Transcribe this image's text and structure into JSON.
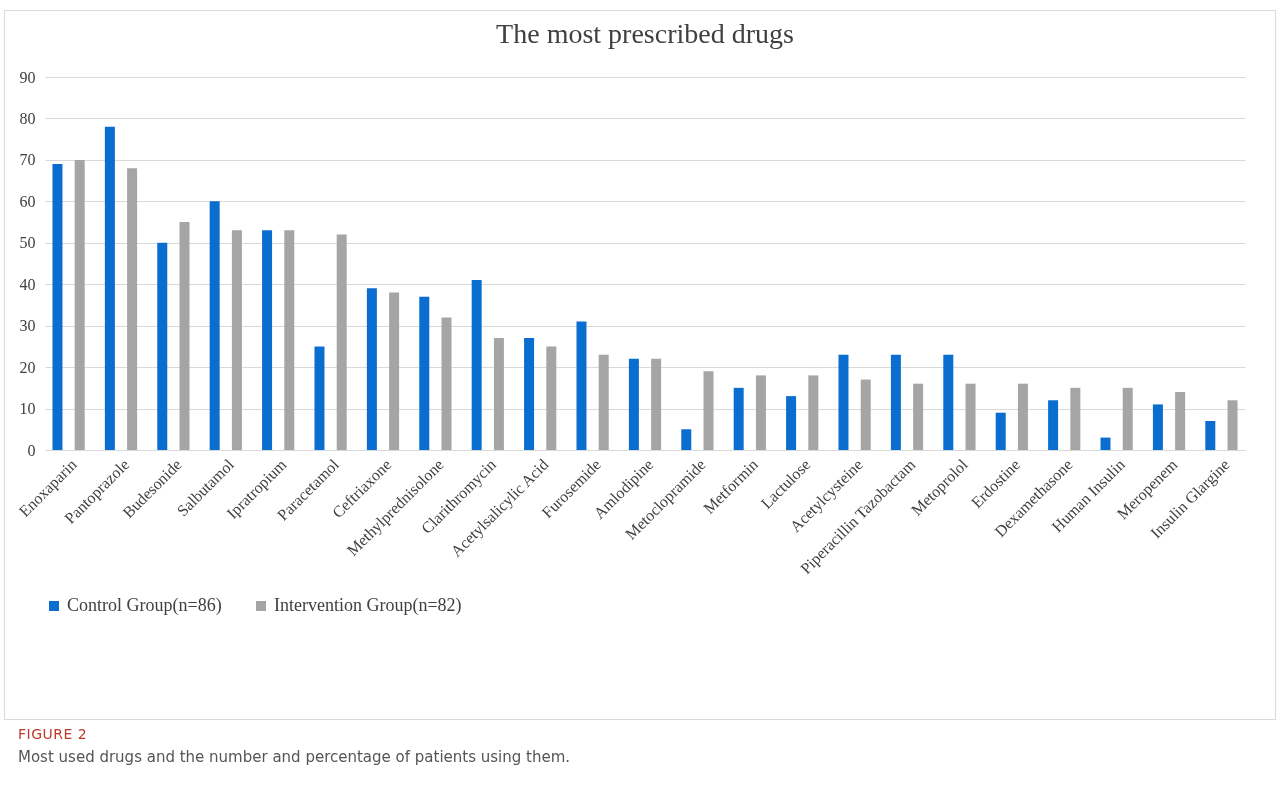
{
  "chart_data": {
    "type": "bar",
    "title": "The most prescribed drugs",
    "categories": [
      "Enoxaparin",
      "Pantoprazole",
      "Budesonide",
      "Salbutamol",
      "Ipratropium",
      "Paracetamol",
      "Ceftriaxone",
      "Methylprednisolone",
      "Clarithromycin",
      "Acetylsalicylic Acid",
      "Furosemide",
      "Amlodipine",
      "Metoclopramide",
      "Metformin",
      "Lactulose",
      "Acetylcysteine",
      "Piperacillin Tazobactam",
      "Metoprolol",
      "Erdostine",
      "Dexamethasone",
      "Human Insulin",
      "Meropenem",
      "Insulin Glargine"
    ],
    "series": [
      {
        "name": "Control Group(n=86)",
        "color": "#0a6ed1",
        "values": [
          69,
          78,
          50,
          60,
          53,
          25,
          39,
          37,
          41,
          27,
          31,
          22,
          5,
          15,
          13,
          23,
          23,
          23,
          9,
          12,
          3,
          11,
          7
        ]
      },
      {
        "name": "Intervention Group(n=82)",
        "color": "#a5a5a5",
        "values": [
          70,
          68,
          55,
          53,
          53,
          52,
          38,
          32,
          27,
          25,
          23,
          22,
          19,
          18,
          18,
          17,
          16,
          16,
          16,
          15,
          15,
          14,
          12
        ]
      }
    ],
    "ylim": [
      0,
      90
    ],
    "yticks": [
      0,
      10,
      20,
      30,
      40,
      50,
      60,
      70,
      80,
      90
    ],
    "grid": "y",
    "legend": "bottom",
    "annotations": [
      "FIGURE 2",
      "Most used drugs and the number and percentage of patients using them."
    ]
  }
}
